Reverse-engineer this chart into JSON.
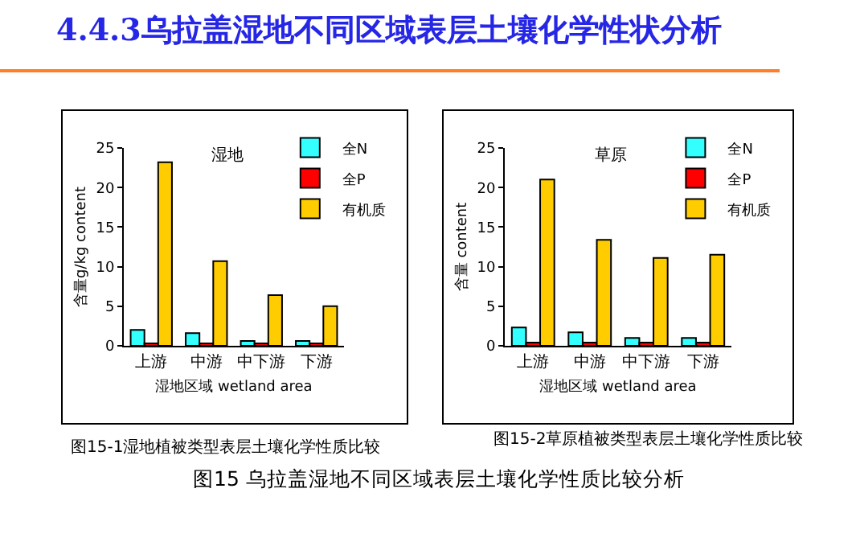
{
  "chart_data": [
    {
      "type": "bar",
      "title": "湿地",
      "xlabel": "湿地区域 wetland area",
      "ylabel": "含量g/kg content",
      "categories": [
        "上游",
        "中游",
        "中下游",
        "下游"
      ],
      "series": [
        {
          "name": "全N",
          "color": "#33ffff",
          "values": [
            2.0,
            1.6,
            0.6,
            0.6
          ]
        },
        {
          "name": "全P",
          "color": "#ff0000",
          "values": [
            0.3,
            0.3,
            0.3,
            0.3
          ]
        },
        {
          "name": "有机质",
          "color": "#ffcc00",
          "values": [
            23.2,
            10.7,
            6.4,
            5.0
          ]
        }
      ],
      "ylim": [
        0,
        25
      ],
      "yticks": [
        0,
        5,
        10,
        15,
        20,
        25
      ],
      "grid": false,
      "legend": "top right",
      "annotations": [
        "图15-1湿地植被类型表层土壤化学性质比较",
        "4.4.3乌拉盖湿地不同区域表层土壤化学性状分析",
        "图15 乌拉盖湿地不同区域表层土壤化学性质比较分析"
      ]
    },
    {
      "type": "bar",
      "title": "草原",
      "xlabel": "湿地区域 wetland area",
      "ylabel": "含量 content",
      "categories": [
        "上游",
        "中游",
        "中下游",
        "下游"
      ],
      "series": [
        {
          "name": "全N",
          "color": "#33ffff",
          "values": [
            2.3,
            1.7,
            1.0,
            1.0
          ]
        },
        {
          "name": "全P",
          "color": "#ff0000",
          "values": [
            0.4,
            0.4,
            0.4,
            0.4
          ]
        },
        {
          "name": "有机质",
          "color": "#ffcc00",
          "values": [
            21.0,
            13.4,
            11.1,
            11.5
          ]
        }
      ],
      "ylim": [
        0,
        25
      ],
      "yticks": [
        0,
        5,
        10,
        15,
        20,
        25
      ],
      "grid": false,
      "legend": "top right",
      "annotations": [
        "图15-2草原植被类型表层土壤化学性质比较"
      ]
    }
  ]
}
